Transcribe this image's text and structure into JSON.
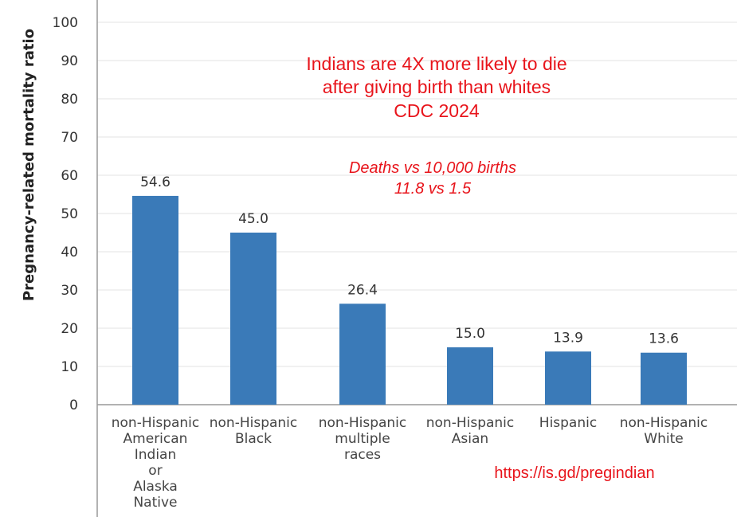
{
  "chart_data": {
    "type": "bar",
    "ylabel": "Pregnancy-related mortality ratio",
    "xlabel": "",
    "ylim": [
      0,
      100
    ],
    "yticks": [
      0,
      10,
      20,
      30,
      40,
      50,
      60,
      70,
      80,
      90,
      100
    ],
    "grid": true,
    "bar_color": "#3a7ab8",
    "categories": [
      [
        "non-Hispanic",
        "American",
        "Indian",
        "or",
        "Alaska",
        "Native"
      ],
      [
        "non-Hispanic",
        "Black"
      ],
      [
        "non-Hispanic",
        "multiple",
        "races"
      ],
      [
        "non-Hispanic",
        "Asian"
      ],
      [
        "Hispanic"
      ],
      [
        "non-Hispanic",
        "White"
      ]
    ],
    "values": [
      54.6,
      45.0,
      26.4,
      15.0,
      13.9,
      13.6
    ],
    "value_labels": [
      "54.6",
      "45.0",
      "26.4",
      "15.0",
      "13.9",
      "13.6"
    ],
    "annotations": {
      "headline": [
        "Indians are 4X more likely to die",
        "after giving birth than whites",
        "CDC 2024"
      ],
      "subtitle": [
        "Deaths vs 10,000 births",
        "11.8 vs 1.5"
      ],
      "url": "https://is.gd/pregindian",
      "color": "#e8141b"
    }
  }
}
